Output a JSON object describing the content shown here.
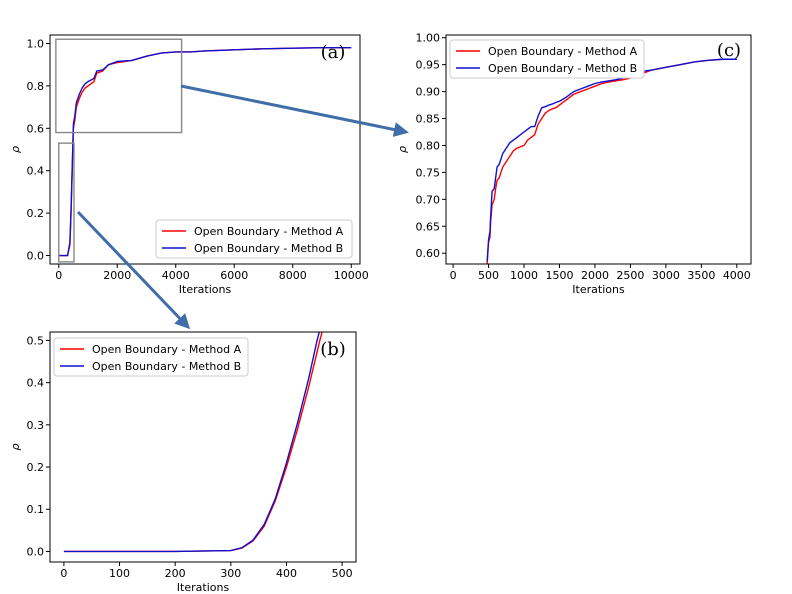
{
  "colors": {
    "method_a": "#ff0000",
    "method_b": "#1010d0",
    "zoom_box": "#888888",
    "arrow": "#3f6ea8",
    "axes": "#000000"
  },
  "chart_data": [
    {
      "id": "a",
      "type": "line",
      "panel_label": "(a)",
      "xlabel": "Iterations",
      "ylabel": "ρ",
      "xlim": [
        -300,
        10300
      ],
      "ylim": [
        -0.04,
        1.04
      ],
      "xticks": [
        0,
        2000,
        4000,
        6000,
        8000,
        10000
      ],
      "xtick_labels": [
        "0",
        "2000",
        "4000",
        "6000",
        "8000",
        "10000"
      ],
      "yticks": [
        0.0,
        0.2,
        0.4,
        0.6,
        0.8,
        1.0
      ],
      "ytick_labels": [
        "0.0",
        "0.2",
        "0.4",
        "0.6",
        "0.8",
        "1.0"
      ],
      "legend_position": "lower-right",
      "series": [
        {
          "name": "Open Boundary - Method A",
          "x": [
            0,
            300,
            380,
            420,
            460,
            500,
            550,
            600,
            700,
            800,
            900,
            1000,
            1200,
            1300,
            1500,
            1700,
            2000,
            2500,
            3000,
            3500,
            4000,
            4500,
            5000,
            6000,
            7000,
            8000,
            9000,
            10000
          ],
          "y": [
            0,
            0,
            0.05,
            0.2,
            0.4,
            0.6,
            0.64,
            0.7,
            0.74,
            0.77,
            0.79,
            0.8,
            0.82,
            0.86,
            0.87,
            0.9,
            0.91,
            0.92,
            0.94,
            0.955,
            0.96,
            0.96,
            0.965,
            0.97,
            0.975,
            0.978,
            0.98,
            0.98
          ]
        },
        {
          "name": "Open Boundary - Method B",
          "x": [
            0,
            300,
            380,
            420,
            460,
            500,
            550,
            600,
            700,
            800,
            900,
            1000,
            1200,
            1300,
            1500,
            1700,
            2000,
            2500,
            3000,
            3500,
            4000,
            4500,
            5000,
            6000,
            7000,
            8000,
            9000,
            10000
          ],
          "y": [
            0,
            0,
            0.06,
            0.22,
            0.42,
            0.62,
            0.66,
            0.72,
            0.76,
            0.79,
            0.81,
            0.82,
            0.835,
            0.87,
            0.875,
            0.9,
            0.915,
            0.92,
            0.94,
            0.955,
            0.96,
            0.96,
            0.965,
            0.97,
            0.975,
            0.978,
            0.98,
            0.98
          ]
        }
      ],
      "zoom_boxes": [
        {
          "x0": -100,
          "x1": 4200,
          "y0": 0.58,
          "y1": 1.02
        },
        {
          "x0": 0,
          "x1": 520,
          "y0": -0.03,
          "y1": 0.53
        }
      ]
    },
    {
      "id": "b",
      "type": "line",
      "panel_label": "(b)",
      "xlabel": "Iterations",
      "ylabel": "ρ",
      "xlim": [
        -25,
        525
      ],
      "ylim": [
        -0.025,
        0.52
      ],
      "xticks": [
        0,
        100,
        200,
        300,
        400,
        500
      ],
      "xtick_labels": [
        "0",
        "100",
        "200",
        "300",
        "400",
        "500"
      ],
      "yticks": [
        0.0,
        0.1,
        0.2,
        0.3,
        0.4,
        0.5
      ],
      "ytick_labels": [
        "0.0",
        "0.1",
        "0.2",
        "0.3",
        "0.4",
        "0.5"
      ],
      "legend_position": "upper-left",
      "series": [
        {
          "name": "Open Boundary - Method A",
          "x": [
            0,
            100,
            200,
            300,
            320,
            340,
            360,
            380,
            400,
            420,
            440,
            460,
            470
          ],
          "y": [
            0,
            0,
            0,
            0.002,
            0.008,
            0.025,
            0.06,
            0.12,
            0.2,
            0.29,
            0.39,
            0.5,
            0.55
          ]
        },
        {
          "name": "Open Boundary - Method B",
          "x": [
            0,
            100,
            200,
            300,
            320,
            340,
            360,
            380,
            400,
            420,
            440,
            455,
            465
          ],
          "y": [
            0,
            0,
            0,
            0.002,
            0.009,
            0.027,
            0.064,
            0.125,
            0.21,
            0.305,
            0.41,
            0.5,
            0.55
          ]
        }
      ]
    },
    {
      "id": "c",
      "type": "line",
      "panel_label": "(c)",
      "xlabel": "Iterations",
      "ylabel": "ρ",
      "xlim": [
        -100,
        4200
      ],
      "ylim": [
        0.58,
        1.005
      ],
      "xticks": [
        0,
        500,
        1000,
        1500,
        2000,
        2500,
        3000,
        3500,
        4000
      ],
      "xtick_labels": [
        "0",
        "500",
        "1000",
        "1500",
        "2000",
        "2500",
        "3000",
        "3500",
        "4000"
      ],
      "yticks": [
        0.6,
        0.65,
        0.7,
        0.75,
        0.8,
        0.85,
        0.9,
        0.95,
        1.0
      ],
      "ytick_labels": [
        "0.60",
        "0.65",
        "0.70",
        "0.75",
        "0.80",
        "0.85",
        "0.90",
        "0.95",
        "1.00"
      ],
      "legend_position": "upper-left",
      "series": [
        {
          "name": "Open Boundary - Method A",
          "x": [
            480,
            500,
            520,
            530,
            550,
            580,
            600,
            620,
            650,
            700,
            750,
            800,
            850,
            900,
            1000,
            1050,
            1100,
            1150,
            1200,
            1250,
            1300,
            1350,
            1400,
            1450,
            1500,
            1550,
            1600,
            1650,
            1700,
            1800,
            1900,
            2000,
            2100,
            2200,
            2300,
            2400,
            2500,
            2600,
            2700,
            2800,
            3000,
            3200,
            3400,
            3600,
            3800,
            4000
          ],
          "y": [
            0.58,
            0.62,
            0.63,
            0.66,
            0.69,
            0.7,
            0.72,
            0.735,
            0.74,
            0.76,
            0.77,
            0.78,
            0.79,
            0.795,
            0.8,
            0.81,
            0.815,
            0.82,
            0.84,
            0.85,
            0.86,
            0.865,
            0.868,
            0.87,
            0.875,
            0.88,
            0.885,
            0.89,
            0.895,
            0.9,
            0.905,
            0.91,
            0.915,
            0.918,
            0.92,
            0.922,
            0.925,
            0.93,
            0.935,
            0.94,
            0.945,
            0.95,
            0.955,
            0.958,
            0.96,
            0.96
          ]
        },
        {
          "name": "Open Boundary - Method B",
          "x": [
            480,
            500,
            520,
            530,
            550,
            580,
            600,
            620,
            650,
            700,
            750,
            800,
            850,
            900,
            1000,
            1050,
            1100,
            1150,
            1200,
            1250,
            1300,
            1350,
            1400,
            1450,
            1500,
            1550,
            1600,
            1650,
            1700,
            1800,
            1900,
            2000,
            2100,
            2200,
            2300,
            2400,
            2500,
            2600,
            2700,
            2800,
            3000,
            3200,
            3400,
            3600,
            3800,
            4000
          ],
          "y": [
            0.585,
            0.625,
            0.64,
            0.67,
            0.715,
            0.72,
            0.74,
            0.76,
            0.765,
            0.785,
            0.795,
            0.805,
            0.81,
            0.815,
            0.825,
            0.83,
            0.835,
            0.835,
            0.855,
            0.87,
            0.872,
            0.875,
            0.877,
            0.88,
            0.882,
            0.886,
            0.89,
            0.895,
            0.9,
            0.905,
            0.91,
            0.915,
            0.918,
            0.92,
            0.922,
            0.925,
            0.928,
            0.932,
            0.938,
            0.94,
            0.945,
            0.95,
            0.955,
            0.958,
            0.96,
            0.96
          ]
        }
      ]
    }
  ]
}
